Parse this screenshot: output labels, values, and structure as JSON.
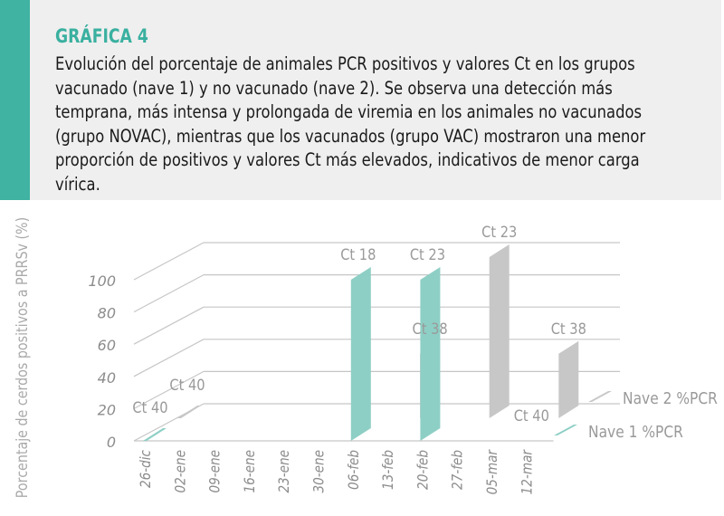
{
  "header": {
    "heading": "GRÁFICA 4",
    "caption": "Evolución del porcentaje de animales PCR positivos y valores Ct en los grupos vacunado (nave 1) y no vacunado (nave 2). Se observa una detección más temprana, más intensa y prolongada de viremia en los animales no vacunados (grupo NOVAC), mientras que los vacunados (grupo VAC) mostraron una menor proporción de positivos y valores Ct más elevados, indicativos de menor carga vírica."
  },
  "chart_data": {
    "type": "bar",
    "style": "3d",
    "ylabel": "Porcentaje de cerdos positivos a PRRSv (%)",
    "ylim": [
      0,
      100
    ],
    "yticks": [
      "0",
      "20",
      "40",
      "60",
      "80",
      "100"
    ],
    "categories": [
      "26-dic",
      "02-ene",
      "09-ene",
      "16-ene",
      "23-ene",
      "30-ene",
      "06-feb",
      "13-feb",
      "20-feb",
      "27-feb",
      "05-mar",
      "12-mar"
    ],
    "series": [
      {
        "name": "Nave 1 %PCR",
        "color": "#8ecfc5",
        "values": [
          5,
          0,
          0,
          0,
          0,
          0,
          100,
          0,
          100,
          0,
          0,
          0
        ],
        "labels": [
          "Ct 40",
          "",
          "",
          "",
          "",
          "",
          "Ct 18",
          "",
          "Ct 23",
          "",
          "",
          "Ct 40"
        ]
      },
      {
        "name": "Nave 2 %PCR",
        "color": "#c7c7c7",
        "values": [
          5,
          0,
          0,
          0,
          0,
          0,
          0,
          40,
          0,
          100,
          0,
          40
        ],
        "labels": [
          "Ct 40",
          "",
          "",
          "",
          "",
          "",
          "",
          "Ct 38",
          "",
          "Ct 23",
          "",
          "Ct 38"
        ]
      }
    ],
    "legend": "right",
    "grid": true
  }
}
